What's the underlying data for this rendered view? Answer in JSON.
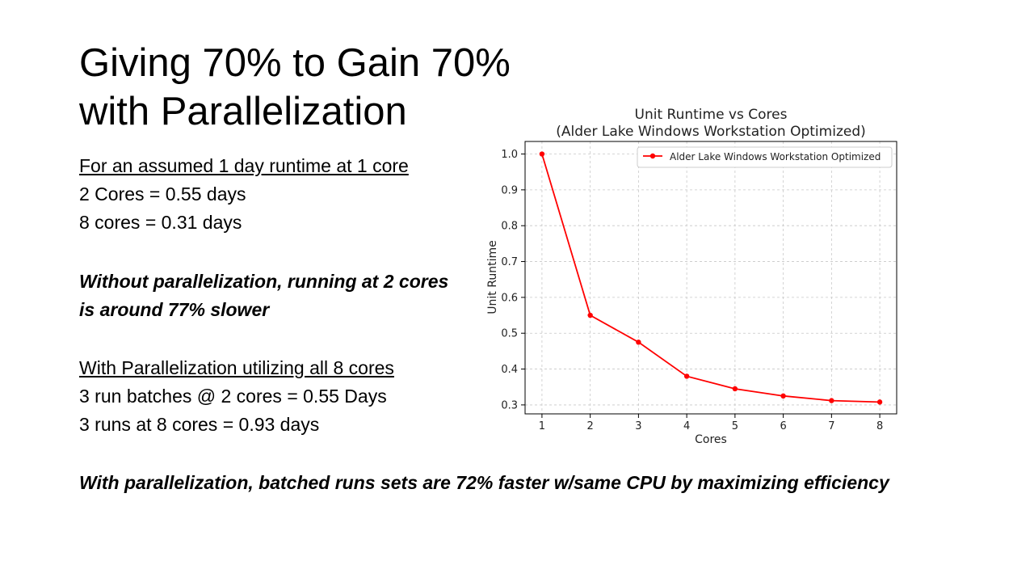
{
  "slide": {
    "title_lines": [
      "Giving 70% to Gain 70%",
      "with Parallelization"
    ],
    "section1": {
      "heading": "For an assumed 1 day runtime at 1 core",
      "lines": [
        "2 Cores = 0.55 days",
        "8 cores = 0.31 days"
      ]
    },
    "emphasis_lines": [
      "Without parallelization, running at 2 cores",
      "is around 77% slower"
    ],
    "section2": {
      "heading": "With Parallelization utilizing all 8 cores",
      "lines": [
        "3 run batches @ 2 cores = 0.55 Days",
        "3 runs at 8 cores = 0.93 days"
      ]
    },
    "conclusion": "With parallelization, batched runs sets are 72% faster w/same CPU by maximizing efficiency"
  },
  "chart_data": {
    "type": "line",
    "title_lines": [
      "Unit Runtime vs Cores",
      "(Alder Lake Windows Workstation Optimized)"
    ],
    "xlabel": "Cores",
    "ylabel": "Unit Runtime",
    "x": [
      1,
      2,
      3,
      4,
      5,
      6,
      7,
      8
    ],
    "series": [
      {
        "name": "Alder Lake Windows Workstation Optimized",
        "values": [
          1.0,
          0.55,
          0.475,
          0.38,
          0.345,
          0.325,
          0.312,
          0.308
        ],
        "color": "#ff0000"
      }
    ],
    "xticks": [
      "1",
      "2",
      "3",
      "4",
      "5",
      "6",
      "7",
      "8"
    ],
    "yticks": [
      0.3,
      0.4,
      0.5,
      0.6,
      0.7,
      0.8,
      0.9,
      1.0
    ],
    "ytick_labels": [
      "0.3",
      "0.4",
      "0.5",
      "0.6",
      "0.7",
      "0.8",
      "0.9",
      "1.0"
    ],
    "xlim": [
      0.65,
      8.35
    ],
    "ylim": [
      0.275,
      1.035
    ],
    "grid": true,
    "grid_style": "dashed",
    "legend_position": "top-right"
  }
}
